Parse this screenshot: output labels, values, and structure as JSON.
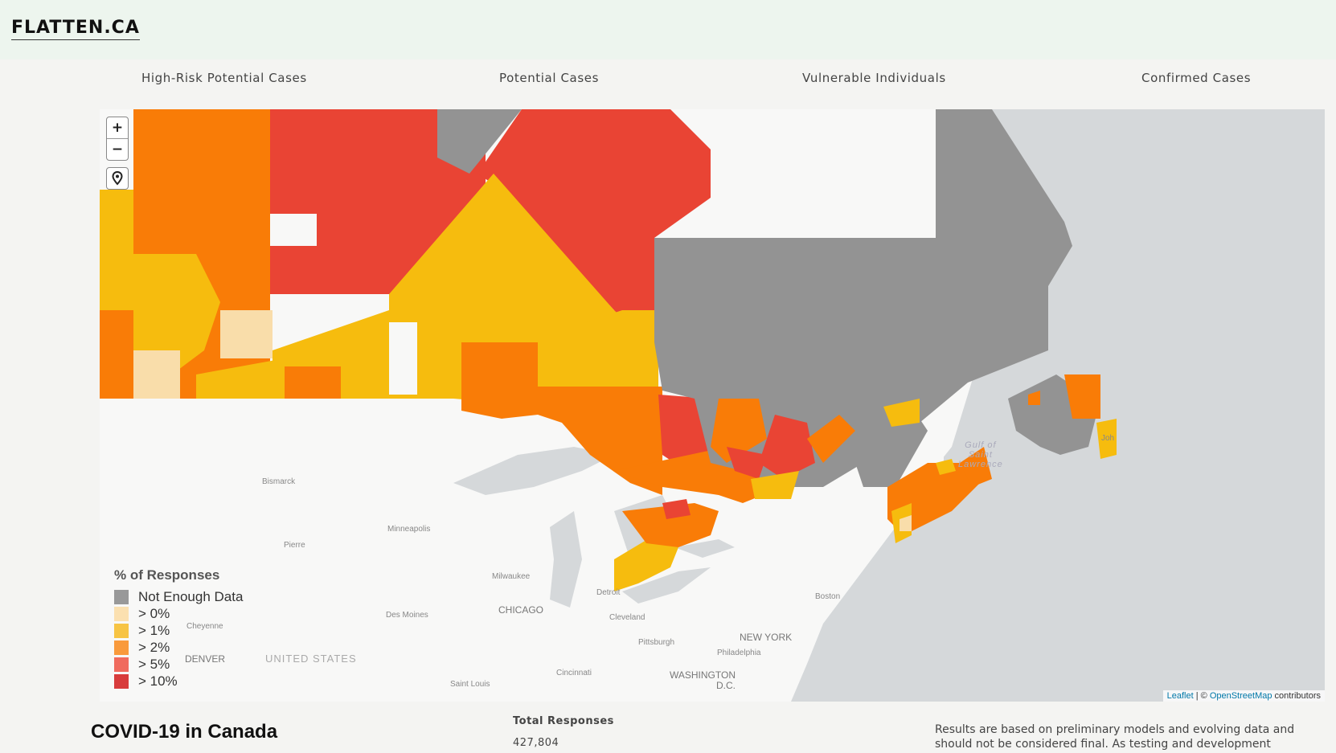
{
  "header": {
    "logo": "FLATTEN.CA"
  },
  "tabs": [
    {
      "label": "High-Risk Potential Cases"
    },
    {
      "label": "Potential Cases"
    },
    {
      "label": "Vulnerable Individuals"
    },
    {
      "label": "Confirmed Cases"
    }
  ],
  "map": {
    "zoom_in": "+",
    "zoom_out": "−",
    "legend": {
      "title": "% of Responses",
      "items": [
        {
          "label": "Not Enough Data",
          "color": "#999999"
        },
        {
          "label": "> 0%",
          "color": "#fbe0b0"
        },
        {
          "label": "> 1%",
          "color": "#f7c443"
        },
        {
          "label": "> 2%",
          "color": "#f99a3c"
        },
        {
          "label": "> 5%",
          "color": "#f06b5e"
        },
        {
          "label": "> 10%",
          "color": "#d83c3c"
        }
      ]
    },
    "fill_colors": {
      "no_data": "#939393",
      "gt0": "#f9ddaa",
      "gt1": "#f6bc0e",
      "gt2": "#f97c07",
      "gt10": "#e94434",
      "land": "#f8f8f7",
      "water": "#d5d8da"
    },
    "places": {
      "bismarck": "Bismarck",
      "minneapolis": "Minneapolis",
      "pierre": "Pierre",
      "milwaukee": "Milwaukee",
      "detroit": "Detroit",
      "chicago": "CHICAGO",
      "cleveland": "Cleveland",
      "des_moines": "Des Moines",
      "cheyenne": "Cheyenne",
      "denver": "DENVER",
      "united_states": "UNITED STATES",
      "pittsburgh": "Pittsburgh",
      "new_york": "NEW YORK",
      "philadelphia": "Philadelphia",
      "boston": "Boston",
      "cincinnati": "Cincinnati",
      "washington": "WASHINGTON",
      "dc": "D.C.",
      "saint_louis": "Saint Louis",
      "gulf_1": "Gulf of",
      "gulf_2": "Saint",
      "gulf_3": "Lawrence",
      "johns": "Joh"
    },
    "attribution": {
      "leaflet": "Leaflet",
      "separator": " | © ",
      "osm": "OpenStreetMap",
      "suffix": " contributors"
    }
  },
  "footer": {
    "title": "COVID-19 in Canada",
    "total_label": "Total Responses",
    "total_value": "427,804",
    "disclaimer": "Results are based on preliminary models and evolving data and should not be considered final. As testing and development"
  }
}
